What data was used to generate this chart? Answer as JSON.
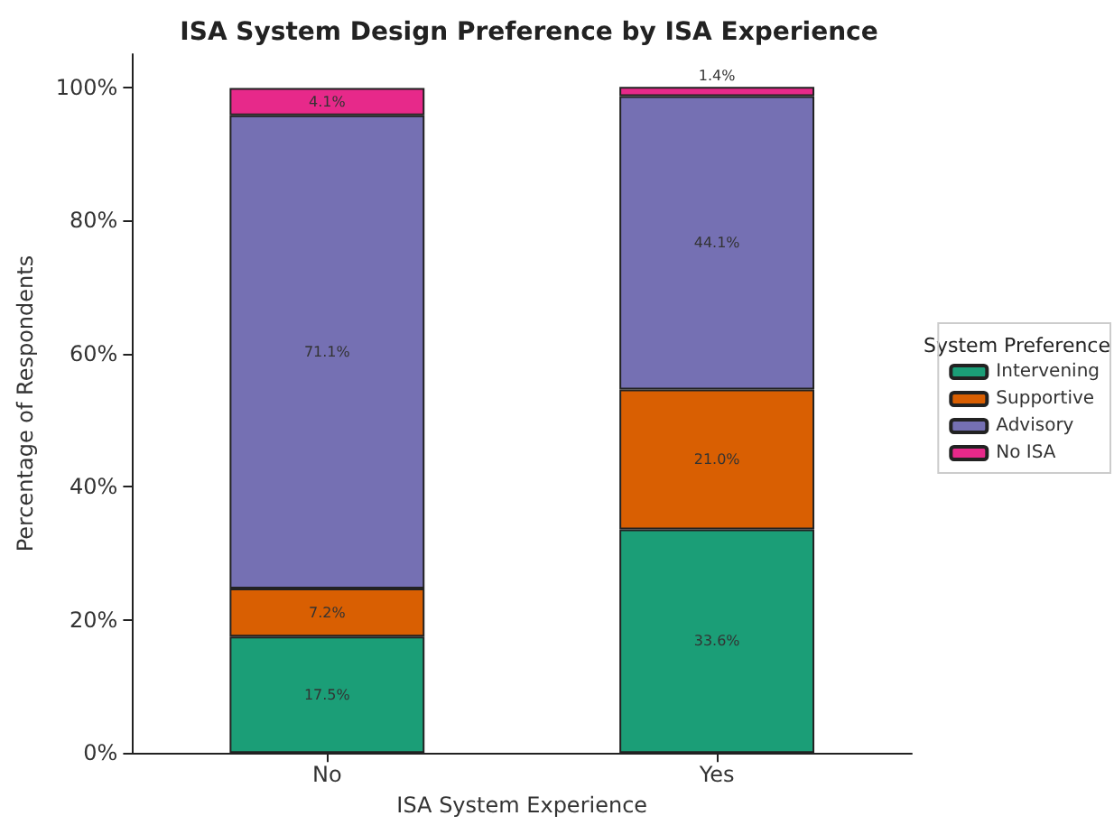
{
  "chart_data": {
    "type": "bar",
    "title": "ISA System Design Preference by ISA Experience",
    "xlabel": "ISA System Experience",
    "ylabel": "Percentage of Respondents",
    "legend_title": "System Preference",
    "categories": [
      "No",
      "Yes"
    ],
    "stacked": true,
    "legend": "right",
    "series": [
      {
        "name": "Intervening",
        "color": "#1b9e77",
        "values": [
          17.5,
          33.6
        ],
        "value_labels": [
          "17.5%",
          "33.6%"
        ]
      },
      {
        "name": "Supportive",
        "color": "#d95f02",
        "values": [
          7.2,
          21.0
        ],
        "value_labels": [
          "7.2%",
          "21.0%"
        ]
      },
      {
        "name": "Advisory",
        "color": "#7570b3",
        "values": [
          71.1,
          44.1
        ],
        "value_labels": [
          "71.1%",
          "44.1%"
        ]
      },
      {
        "name": "No ISA",
        "color": "#e7298a",
        "values": [
          4.1,
          1.4
        ],
        "value_labels": [
          "4.1%",
          "1.4%"
        ]
      }
    ],
    "ylim": [
      0,
      105
    ],
    "yticks": [
      {
        "value": 0,
        "label": "0%"
      },
      {
        "value": 20,
        "label": "20%"
      },
      {
        "value": 40,
        "label": "40%"
      },
      {
        "value": 60,
        "label": "60%"
      },
      {
        "value": 80,
        "label": "80%"
      },
      {
        "value": 100,
        "label": "100%"
      }
    ]
  }
}
